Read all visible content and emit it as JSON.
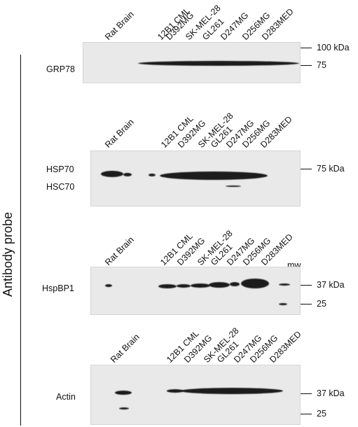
{
  "y_axis_title": "Antibody probe",
  "panels": [
    {
      "probe": "GRP78",
      "lanes": [
        "Rat Brain",
        "12B1 CML",
        "D392MG",
        "SK-MEL-28",
        "GL261",
        "D247MG",
        "D256MG",
        "D283MED"
      ],
      "markers": [
        "100 kDa",
        "75"
      ]
    },
    {
      "probe_top": "HSP70",
      "probe_bottom": "HSC70",
      "lanes": [
        "Rat Brain",
        "12B1 CML",
        "D392MG",
        "SK-MEL-28",
        "GL261",
        "D247MG",
        "D256MG",
        "D283MED"
      ],
      "markers": [
        "75 kDa"
      ]
    },
    {
      "probe": "HspBP1",
      "lanes": [
        "Rat Brain",
        "12B1 CML",
        "D392MG",
        "SK-MEL-28",
        "GL261",
        "D247MG",
        "D256MG",
        "D283MED",
        "mw"
      ],
      "markers": [
        "37 kDa",
        "25"
      ]
    },
    {
      "probe": "Actin",
      "lanes": [
        "Rat Brain",
        "12B1 CML",
        "D392MG",
        "SK-MEL-28",
        "GL261",
        "D247MG",
        "D256MG",
        "D283MED"
      ],
      "markers": [
        "37 kDa",
        "25"
      ]
    }
  ]
}
